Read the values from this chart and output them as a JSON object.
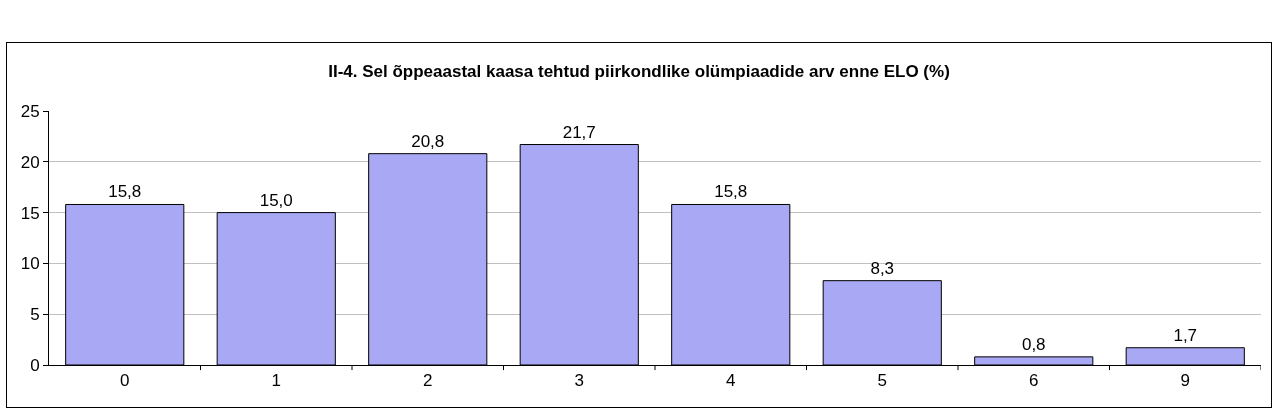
{
  "chart_data": {
    "type": "bar",
    "title": "II-4. Sel õppeaastal kaasa tehtud piirkondlike olümpiaadide arv enne ELO (%)",
    "categories": [
      "0",
      "1",
      "2",
      "3",
      "4",
      "5",
      "6",
      "9"
    ],
    "values": [
      15.8,
      15.0,
      20.8,
      21.7,
      15.8,
      8.3,
      0.8,
      1.7
    ],
    "value_labels": [
      "15,8",
      "15,0",
      "20,8",
      "21,7",
      "15,8",
      "8,3",
      "0,8",
      "1,7"
    ],
    "color": "#a8a8f4",
    "ylim": [
      0,
      25
    ],
    "yticks": [
      0,
      5,
      10,
      15,
      20,
      25
    ],
    "grid": "y",
    "legend": false
  }
}
